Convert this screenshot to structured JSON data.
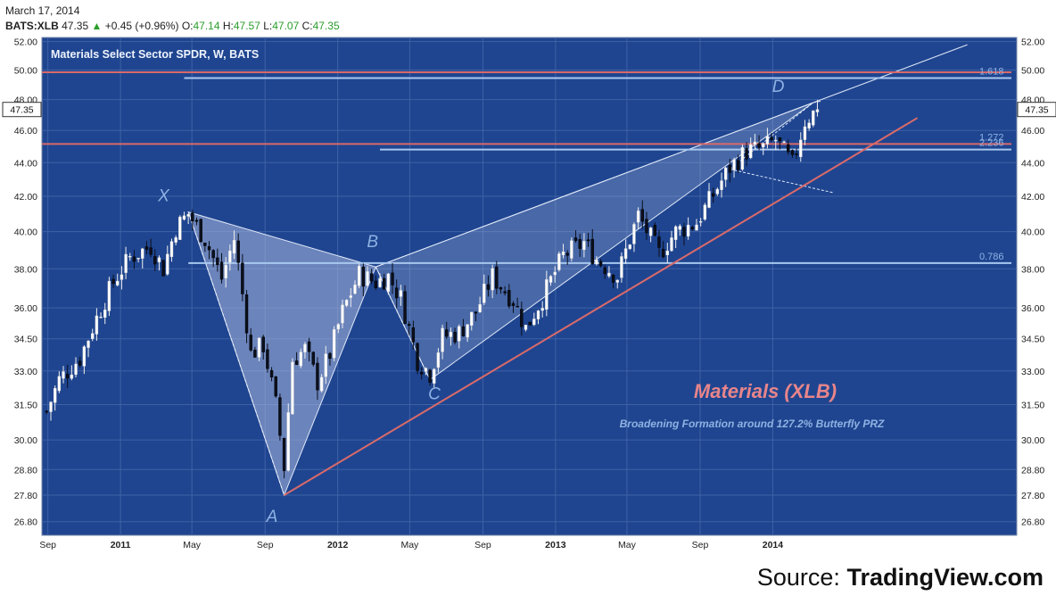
{
  "header": {
    "date": "March 17, 2014",
    "symbol": "BATS:XLB",
    "last": "47.35",
    "change": "+0.45 (+0.96%)",
    "open_label": "O:",
    "open": "47.14",
    "high_label": "H:",
    "high": "47.57",
    "low_label": "L:",
    "low": "47.07",
    "close_label": "C:",
    "close": "47.35"
  },
  "source": {
    "prefix": "Source: ",
    "name": "TradingView.com"
  },
  "chart_data": {
    "type": "candlestick",
    "title": "Materials Select Sector SPDR, W, BATS",
    "yticks": [
      "52.00",
      "50.00",
      "48.00",
      "46.00",
      "44.00",
      "42.00",
      "40.00",
      "38.00",
      "36.00",
      "34.50",
      "33.00",
      "31.50",
      "30.00",
      "28.80",
      "27.80",
      "26.80"
    ],
    "ylim": [
      26.3,
      52.3
    ],
    "scale": "log",
    "xlim": [
      "2010-08-22",
      "2015-02-15"
    ],
    "xticks": [
      {
        "date": "2010-09-01",
        "label": "Sep"
      },
      {
        "date": "2011-01-01",
        "label": "2011"
      },
      {
        "date": "2011-05-01",
        "label": "May"
      },
      {
        "date": "2011-09-01",
        "label": "Sep"
      },
      {
        "date": "2012-01-01",
        "label": "2012"
      },
      {
        "date": "2012-05-01",
        "label": "May"
      },
      {
        "date": "2012-09-01",
        "label": "Sep"
      },
      {
        "date": "2013-01-01",
        "label": "2013"
      },
      {
        "date": "2013-05-01",
        "label": "May"
      },
      {
        "date": "2013-09-01",
        "label": "Sep"
      },
      {
        "date": "2014-01-01",
        "label": "2014"
      }
    ],
    "last_price": "47.35",
    "price_anchors": [
      [
        "2010-08-30",
        31.2
      ],
      [
        "2010-09-20",
        32.6
      ],
      [
        "2010-10-25",
        33.6
      ],
      [
        "2010-11-22",
        35.5
      ],
      [
        "2010-12-20",
        37.3
      ],
      [
        "2011-01-17",
        38.6
      ],
      [
        "2011-02-21",
        39.2
      ],
      [
        "2011-03-14",
        38.0
      ],
      [
        "2011-04-04",
        40.2
      ],
      [
        "2011-04-25",
        41.0
      ],
      [
        "2011-05-23",
        39.6
      ],
      [
        "2011-06-20",
        37.5
      ],
      [
        "2011-07-11",
        39.6
      ],
      [
        "2011-08-08",
        33.8
      ],
      [
        "2011-08-29",
        34.2
      ],
      [
        "2011-09-19",
        31.5
      ],
      [
        "2011-10-03",
        28.9
      ],
      [
        "2011-10-17",
        33.5
      ],
      [
        "2011-11-07",
        34.0
      ],
      [
        "2011-11-28",
        32.5
      ],
      [
        "2011-12-19",
        33.8
      ],
      [
        "2012-01-09",
        35.8
      ],
      [
        "2012-02-06",
        37.7
      ],
      [
        "2012-03-05",
        37.3
      ],
      [
        "2012-03-26",
        37.6
      ],
      [
        "2012-04-16",
        36.5
      ],
      [
        "2012-05-14",
        33.5
      ],
      [
        "2012-06-04",
        32.9
      ],
      [
        "2012-06-25",
        34.6
      ],
      [
        "2012-07-23",
        34.8
      ],
      [
        "2012-08-20",
        35.8
      ],
      [
        "2012-09-17",
        37.6
      ],
      [
        "2012-10-22",
        36.4
      ],
      [
        "2012-11-12",
        35.0
      ],
      [
        "2012-12-10",
        36.5
      ],
      [
        "2013-01-14",
        38.7
      ],
      [
        "2013-02-18",
        39.4
      ],
      [
        "2013-03-11",
        38.5
      ],
      [
        "2013-04-15",
        37.6
      ],
      [
        "2013-05-20",
        40.9
      ],
      [
        "2013-06-24",
        38.8
      ],
      [
        "2013-07-22",
        40.0
      ],
      [
        "2013-08-26",
        40.5
      ],
      [
        "2013-09-23",
        42.1
      ],
      [
        "2013-10-21",
        43.7
      ],
      [
        "2013-11-18",
        44.7
      ],
      [
        "2013-12-16",
        44.9
      ],
      [
        "2014-01-06",
        45.4
      ],
      [
        "2014-02-03",
        43.9
      ],
      [
        "2014-02-24",
        46.6
      ],
      [
        "2014-03-17",
        47.35
      ]
    ],
    "hlines": [
      {
        "price": 49.85,
        "color": "#d96a6a",
        "label": ""
      },
      {
        "price": 49.45,
        "color": "#a8c8ee",
        "label": "1.618"
      },
      {
        "price": 45.15,
        "color": "#d96a6a",
        "label": "1.272"
      },
      {
        "price": 44.8,
        "color": "#a8c8ee",
        "label": "2.236"
      },
      {
        "price": 38.3,
        "color": "#a8c8ee",
        "label": "0.786"
      }
    ],
    "points": [
      {
        "label": "X",
        "date": "2011-04-25",
        "price": 41.1
      },
      {
        "label": "A",
        "date": "2011-10-03",
        "price": 27.8
      },
      {
        "label": "B",
        "date": "2012-03-05",
        "price": 38.1
      },
      {
        "label": "C",
        "date": "2012-06-04",
        "price": 32.6
      },
      {
        "label": "D",
        "date": "2014-03-10",
        "price": 47.8
      }
    ],
    "annotation_title": "Materials (XLB)",
    "annotation_subtitle": "Broadening Formation around 127.2% Butterfly PRZ",
    "colors": {
      "background": "#1f4590",
      "grid": "#3f62a6",
      "up_candle": "#ffffff",
      "down_candle": "#0b0f1c",
      "fib_line": "#a8c8ee",
      "resistance": "#d96a6a",
      "pattern_fill": "#aab8de",
      "axis_text": "#222222",
      "label_text": "#8fb2e3",
      "title_annotation": "#e8858a"
    }
  }
}
